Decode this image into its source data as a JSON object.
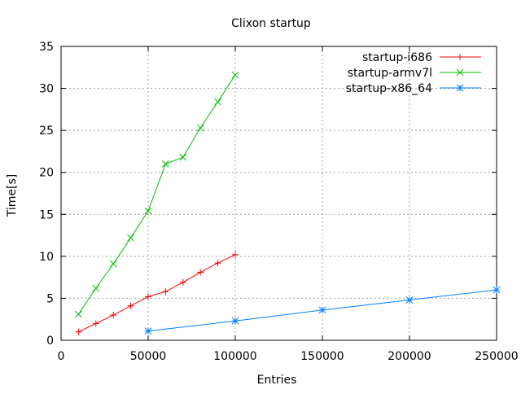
{
  "chart_data": {
    "type": "line",
    "title": "Clixon startup",
    "xlabel": "Entries",
    "ylabel": "Time[s]",
    "xlim": [
      0,
      250000
    ],
    "ylim": [
      0,
      35
    ],
    "xticks": [
      0,
      50000,
      100000,
      150000,
      200000,
      250000
    ],
    "yticks": [
      0,
      5,
      10,
      15,
      20,
      25,
      30,
      35
    ],
    "grid": true,
    "legend_position": "top-right",
    "series": [
      {
        "name": "startup-i686",
        "color": "#ff0000",
        "marker": "plus",
        "x": [
          10000,
          20000,
          30000,
          40000,
          50000,
          60000,
          70000,
          80000,
          90000,
          100000
        ],
        "y": [
          1.0,
          2.0,
          3.0,
          4.1,
          5.2,
          5.8,
          6.9,
          8.1,
          9.2,
          10.2
        ]
      },
      {
        "name": "startup-armv7l",
        "color": "#00c000",
        "marker": "cross",
        "x": [
          10000,
          20000,
          30000,
          40000,
          50000,
          60000,
          70000,
          80000,
          90000,
          100000
        ],
        "y": [
          3.1,
          6.2,
          9.1,
          12.2,
          15.4,
          21.0,
          21.8,
          25.3,
          28.4,
          31.6
        ]
      },
      {
        "name": "startup-x86_64",
        "color": "#0080ff",
        "marker": "star",
        "x": [
          50000,
          100000,
          150000,
          200000,
          250000
        ],
        "y": [
          1.1,
          2.3,
          3.6,
          4.8,
          6.0
        ]
      }
    ]
  }
}
